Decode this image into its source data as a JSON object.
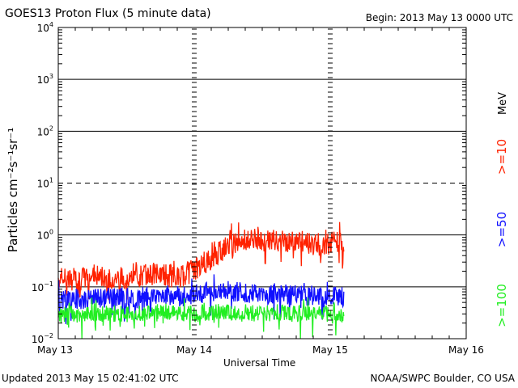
{
  "header": {
    "title": "GOES13 Proton Flux (5 minute data)",
    "begin": "Begin: 2013 May 13 0000 UTC"
  },
  "footer": {
    "updated": "Updated 2013 May 15 02:41:02 UTC",
    "credit": "NOAA/SWPC Boulder, CO USA"
  },
  "colors": {
    "ge10": "#ff2200",
    "ge50": "#1010ff",
    "ge100": "#22ee22",
    "grid": "#000000"
  },
  "chart_data": {
    "type": "line",
    "xlabel": "Universal Time",
    "ylabel": "Particles cm⁻²s⁻¹sr⁻¹",
    "y_scale": "log",
    "ylim": [
      0.01,
      10000
    ],
    "y_tick_exponents": [
      -2,
      -1,
      0,
      1,
      2,
      3,
      4
    ],
    "x_tick_labels": [
      "May 13",
      "May 14",
      "May 15",
      "May 16"
    ],
    "xlim_days": [
      0,
      3
    ],
    "grid": "solid horizontal lines at decades, dashed at 10^1",
    "legend_placement": "right, rotated",
    "unit_label": "MeV",
    "series": [
      {
        "name": ">=10",
        "key": "ge10",
        "x": [
          0.0,
          0.1,
          0.2,
          0.3,
          0.4,
          0.5,
          0.6,
          0.7,
          0.8,
          0.9,
          1.0,
          1.1,
          1.2,
          1.3,
          1.4,
          1.5,
          1.6,
          1.7,
          1.8,
          1.9,
          2.0,
          2.1
        ],
        "values": [
          0.15,
          0.14,
          0.15,
          0.16,
          0.15,
          0.15,
          0.16,
          0.18,
          0.17,
          0.16,
          0.22,
          0.3,
          0.5,
          0.7,
          0.8,
          0.8,
          0.75,
          0.7,
          0.7,
          0.65,
          0.7,
          0.75
        ]
      },
      {
        "name": ">=50",
        "key": "ge50",
        "x": [
          0.0,
          0.1,
          0.2,
          0.3,
          0.4,
          0.5,
          0.6,
          0.7,
          0.8,
          0.9,
          1.0,
          1.1,
          1.2,
          1.3,
          1.4,
          1.5,
          1.6,
          1.7,
          1.8,
          1.9,
          2.0,
          2.1
        ],
        "values": [
          0.05,
          0.06,
          0.055,
          0.06,
          0.065,
          0.06,
          0.06,
          0.07,
          0.07,
          0.065,
          0.07,
          0.08,
          0.085,
          0.08,
          0.075,
          0.07,
          0.075,
          0.07,
          0.07,
          0.065,
          0.07,
          0.065
        ]
      },
      {
        "name": ">=100",
        "key": "ge100",
        "x": [
          0.0,
          0.1,
          0.2,
          0.3,
          0.4,
          0.5,
          0.6,
          0.7,
          0.8,
          0.9,
          1.0,
          1.1,
          1.2,
          1.3,
          1.4,
          1.5,
          1.6,
          1.7,
          1.8,
          1.9,
          2.0,
          2.1
        ],
        "values": [
          0.028,
          0.03,
          0.029,
          0.03,
          0.031,
          0.03,
          0.03,
          0.032,
          0.033,
          0.031,
          0.03,
          0.032,
          0.033,
          0.032,
          0.031,
          0.03,
          0.031,
          0.03,
          0.03,
          0.029,
          0.03,
          0.029
        ]
      }
    ]
  }
}
